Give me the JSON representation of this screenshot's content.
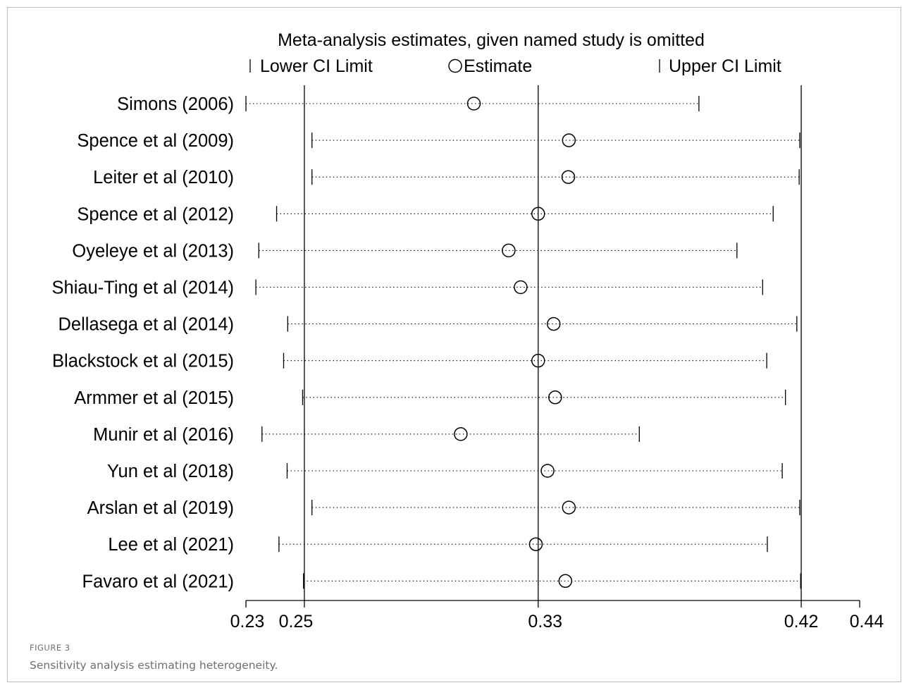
{
  "figure": {
    "label": "FIGURE 3",
    "caption": "Sensitivity analysis estimating heterogeneity."
  },
  "chart_data": {
    "type": "scatter",
    "title": "Meta-analysis estimates, given named study is omitted",
    "legend": {
      "placement": "top",
      "lower": "Lower CI Limit",
      "estimate": "Estimate",
      "upper": "Upper CI Limit"
    },
    "x_ticks": [
      0.23,
      0.25,
      0.33,
      0.42,
      0.44
    ],
    "x_tick_labels": [
      "0.23",
      "0.25",
      "0.33",
      "0.42",
      "0.44"
    ],
    "reference_lines": [
      0.25,
      0.33,
      0.42
    ],
    "xlim": [
      0.23,
      0.44
    ],
    "grid": false,
    "series": [
      {
        "label": "Simons (2006)",
        "lower": 0.23,
        "estimate": 0.308,
        "upper": 0.385
      },
      {
        "label": "Spence et al (2009)",
        "lower": 0.2526,
        "estimate": 0.3405,
        "upper": 0.4195
      },
      {
        "label": "Leiter et al (2010)",
        "lower": 0.2526,
        "estimate": 0.3403,
        "upper": 0.4193
      },
      {
        "label": "Spence et al (2012)",
        "lower": 0.2405,
        "estimate": 0.33,
        "upper": 0.4104
      },
      {
        "label": "Oyeleye et al (2013)",
        "lower": 0.2344,
        "estimate": 0.3199,
        "upper": 0.398
      },
      {
        "label": "Shiau-Ting et al (2014)",
        "lower": 0.2334,
        "estimate": 0.324,
        "upper": 0.4068
      },
      {
        "label": "Dellasega et al (2014)",
        "lower": 0.2443,
        "estimate": 0.3353,
        "upper": 0.4185
      },
      {
        "label": "Blackstock et al (2015)",
        "lower": 0.2429,
        "estimate": 0.33,
        "upper": 0.4082
      },
      {
        "label": "Armmer et al (2015)",
        "lower": 0.2494,
        "estimate": 0.3358,
        "upper": 0.4146
      },
      {
        "label": "Munir et al (2016)",
        "lower": 0.2355,
        "estimate": 0.3035,
        "upper": 0.3646
      },
      {
        "label": "Yun et al (2018)",
        "lower": 0.2441,
        "estimate": 0.3332,
        "upper": 0.4135
      },
      {
        "label": "Arslan et al (2019)",
        "lower": 0.2526,
        "estimate": 0.3405,
        "upper": 0.4195
      },
      {
        "label": "Lee et al (2021)",
        "lower": 0.2413,
        "estimate": 0.3292,
        "upper": 0.4084
      },
      {
        "label": "Favaro et al (2021)",
        "lower": 0.2497,
        "estimate": 0.3393,
        "upper": 0.4198
      }
    ]
  }
}
